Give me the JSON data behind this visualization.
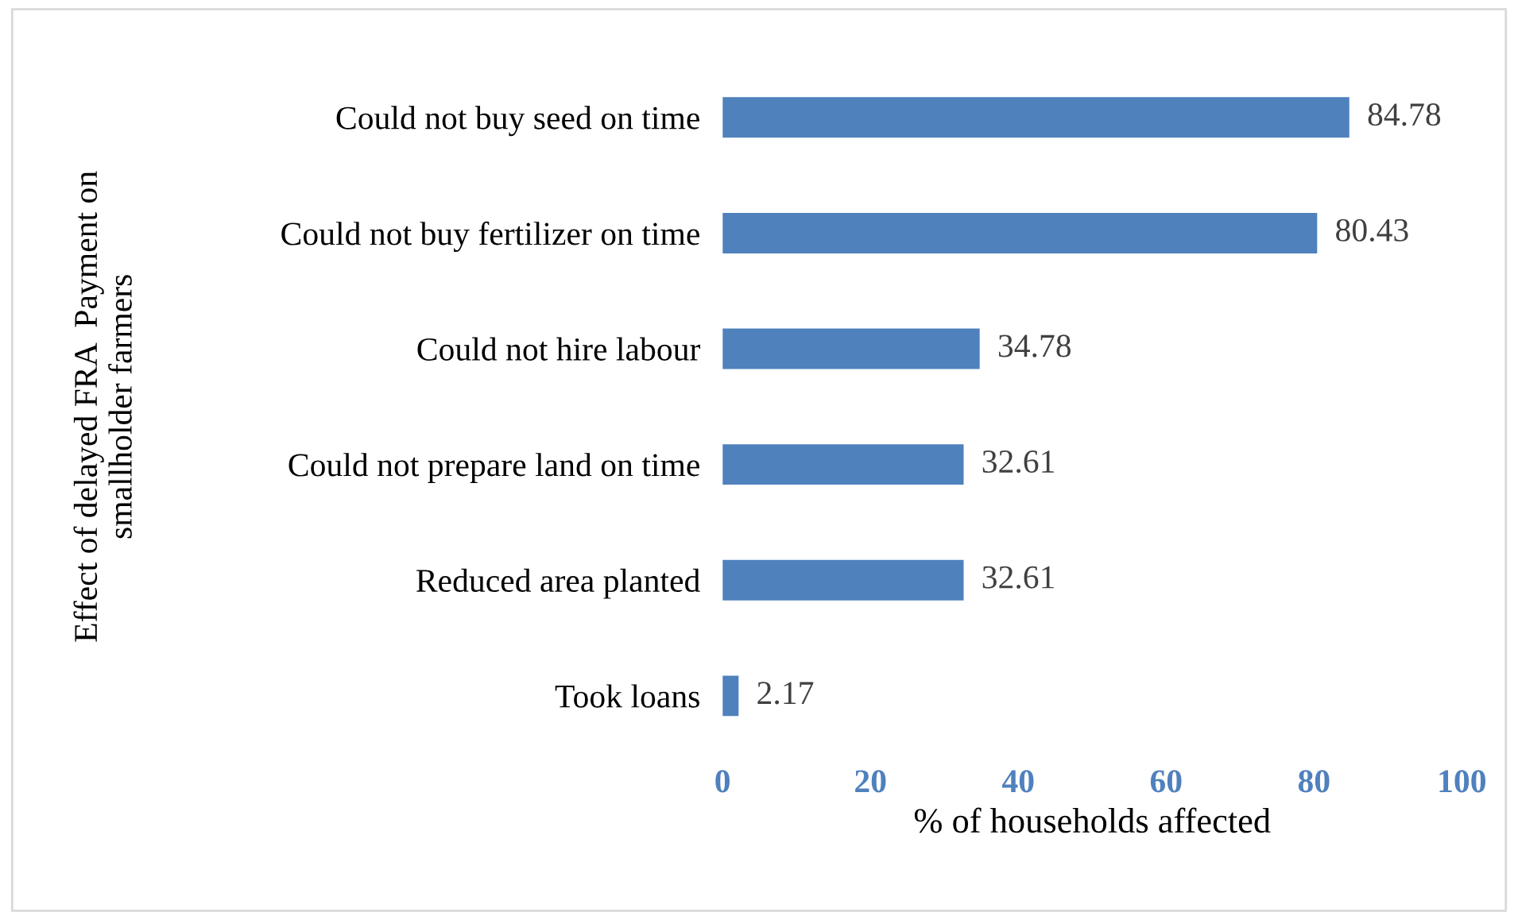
{
  "chart_data": {
    "type": "bar",
    "orientation": "horizontal",
    "categories": [
      "Could not buy seed on time",
      "Could not buy fertilizer on time",
      "Could not hire labour",
      "Could not prepare land on time",
      "Reduced area planted",
      "Took loans"
    ],
    "values": [
      84.78,
      80.43,
      34.78,
      32.61,
      32.61,
      2.17
    ],
    "color": "#4f81bd",
    "xlabel": "% of households affected",
    "ylabel": "Effect of delayed FRA  Payment on\nsmallholder farmers",
    "xlim": [
      0,
      100
    ],
    "xticks": [
      0,
      20,
      40,
      60,
      80,
      100
    ],
    "data_labels": true,
    "grid": false,
    "legend": false
  }
}
